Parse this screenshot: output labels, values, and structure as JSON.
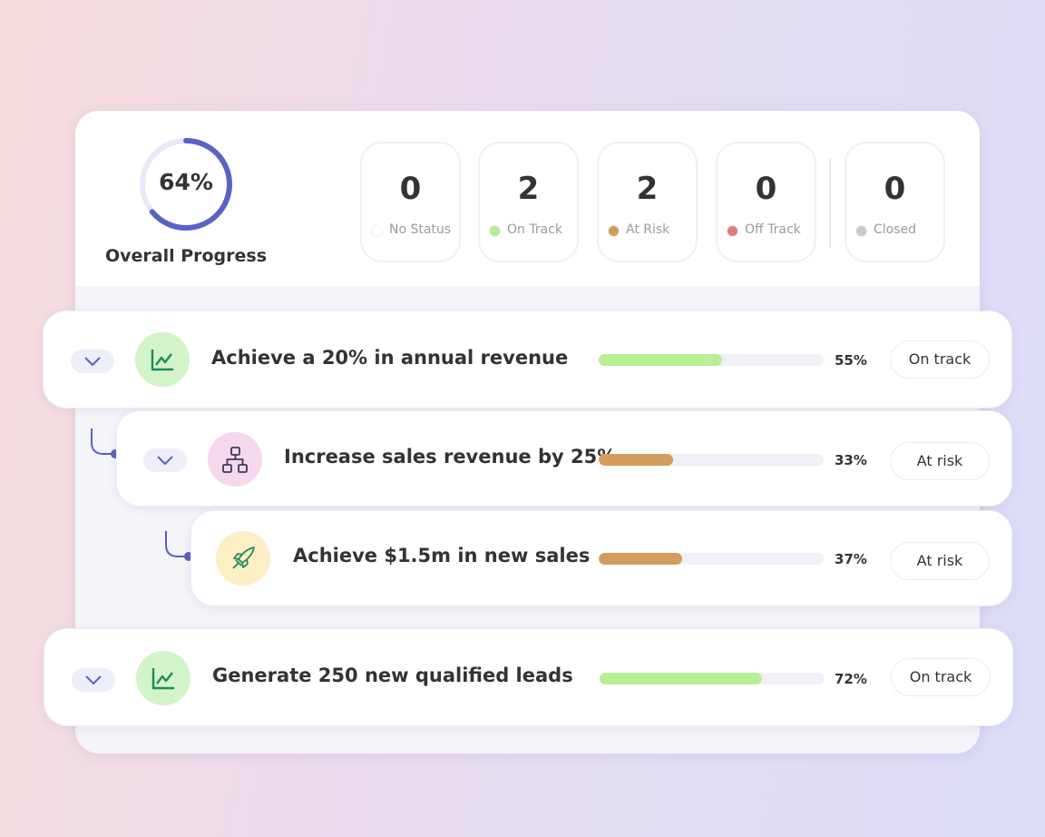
{
  "overall": {
    "value": 64,
    "value_label": "64%",
    "label": "Overall Progress",
    "color": "#5a62c6"
  },
  "statuses": [
    {
      "count": 0,
      "label": "No Status",
      "color": "#ffffff"
    },
    {
      "count": 2,
      "label": "On Track",
      "color": "#b6ec94"
    },
    {
      "count": 2,
      "label": "At Risk",
      "color": "#d49c5c"
    },
    {
      "count": 0,
      "label": "Off Track",
      "color": "#e07c78"
    },
    {
      "count": 0,
      "label": "Closed",
      "color": "#c9c9cd"
    }
  ],
  "goals": [
    {
      "title": "Achieve a 20% in annual revenue",
      "progress": 55,
      "progress_label": "55%",
      "status": "On track",
      "color": "#b8ee96",
      "children": [
        {
          "title": "Increase sales revenue by 25%",
          "progress": 33,
          "progress_label": "33%",
          "status": "At risk",
          "color": "#d49c5c",
          "children": [
            {
              "title": "Achieve $1.5m in new sales",
              "progress": 37,
              "progress_label": "37%",
              "status": "At risk",
              "color": "#d49c5c"
            }
          ]
        }
      ]
    },
    {
      "title": "Generate 250 new qualified leads",
      "progress": 72,
      "progress_label": "72%",
      "status": "On track",
      "color": "#b8ee96"
    }
  ]
}
